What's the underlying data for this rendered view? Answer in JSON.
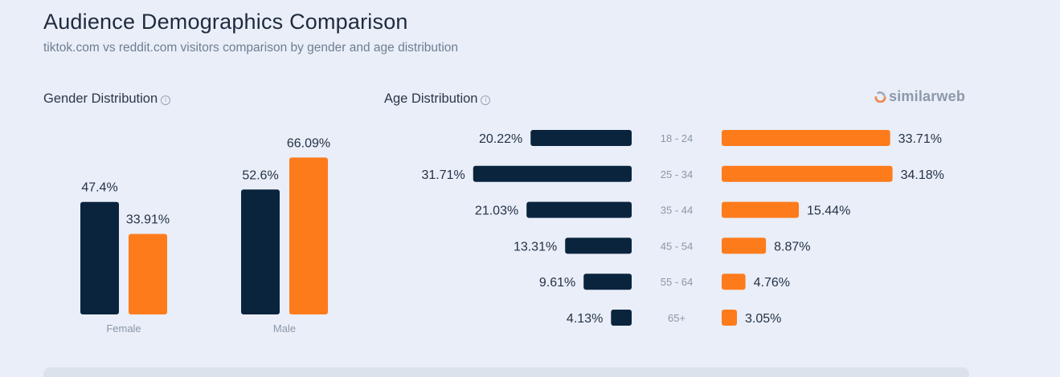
{
  "header": {
    "title": "Audience Demographics Comparison",
    "subtitle": "tiktok.com vs reddit.com visitors comparison by gender and age distribution"
  },
  "brand": {
    "name": "similarweb",
    "icon": "similarweb-logo-icon"
  },
  "colors": {
    "tiktok": "#0b243d",
    "reddit": "#fe7b1c",
    "label": "#8b97a9",
    "value": "#253246"
  },
  "chart_data": [
    {
      "type": "bar",
      "title": "Gender Distribution",
      "categories": [
        "Female",
        "Male"
      ],
      "series": [
        {
          "values": [
            47.4,
            52.6
          ],
          "labels": [
            "47.4%",
            "52.6%"
          ]
        },
        {
          "values": [
            33.91,
            66.09
          ],
          "labels": [
            "33.91%",
            "66.09%"
          ]
        }
      ],
      "ylim": [
        0,
        100
      ],
      "grid": false,
      "legend": "none"
    },
    {
      "type": "bar",
      "orientation": "horizontal-butterfly",
      "title": "Age Distribution",
      "categories": [
        "18 - 24",
        "25 - 34",
        "35 - 44",
        "45 - 54",
        "55 - 64",
        "65+"
      ],
      "series": [
        {
          "values": [
            20.22,
            31.71,
            21.03,
            13.31,
            9.61,
            4.13
          ],
          "labels": [
            "20.22%",
            "31.71%",
            "21.03%",
            "13.31%",
            "9.61%",
            "4.13%"
          ]
        },
        {
          "values": [
            33.71,
            34.18,
            15.44,
            8.87,
            4.76,
            3.05
          ],
          "labels": [
            "33.71%",
            "34.18%",
            "15.44%",
            "8.87%",
            "4.76%",
            "3.05%"
          ]
        }
      ],
      "grid": false,
      "legend": "none"
    }
  ]
}
